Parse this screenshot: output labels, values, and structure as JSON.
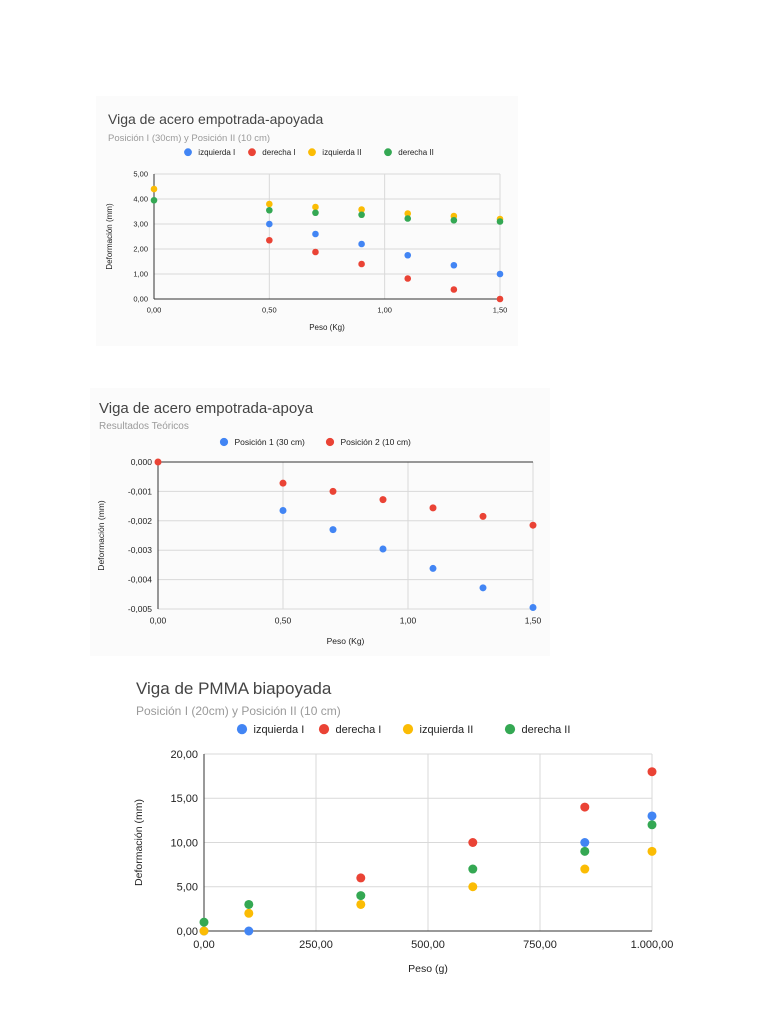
{
  "colors": {
    "blue": "#4285F4",
    "red": "#EA4335",
    "yellow": "#FBBC04",
    "green": "#34A853"
  },
  "chart_data": [
    {
      "type": "scatter",
      "title": "Viga de acero empotrada-apoyada",
      "subtitle": "Posición I (30cm) y Posición II (10 cm)",
      "xlabel": "Peso (Kg)",
      "ylabel": "Deformación (mm)",
      "xlim": [
        0,
        1.5
      ],
      "ylim": [
        0,
        5
      ],
      "xticks": [
        0,
        0.5,
        1.0,
        1.5
      ],
      "xtick_labels": [
        "0,00",
        "0,50",
        "1,00",
        "1,50"
      ],
      "yticks": [
        0,
        1,
        2,
        3,
        4,
        5
      ],
      "ytick_labels": [
        "0,00",
        "1,00",
        "2,00",
        "3,00",
        "4,00",
        "5,00"
      ],
      "grid": true,
      "legend": "top",
      "series": [
        {
          "name": "izquierda I",
          "color": "#4285F4",
          "x": [
            0.5,
            0.7,
            0.9,
            1.1,
            1.3,
            1.5
          ],
          "y": [
            3.0,
            2.6,
            2.2,
            1.75,
            1.35,
            1.0
          ]
        },
        {
          "name": "derecha I",
          "color": "#EA4335",
          "x": [
            0.5,
            0.7,
            0.9,
            1.1,
            1.3,
            1.5
          ],
          "y": [
            2.35,
            1.88,
            1.4,
            0.82,
            0.38,
            0.0
          ]
        },
        {
          "name": "izquierda II",
          "color": "#FBBC04",
          "x": [
            0.0,
            0.5,
            0.7,
            0.9,
            1.1,
            1.3,
            1.5
          ],
          "y": [
            4.4,
            3.8,
            3.68,
            3.58,
            3.42,
            3.32,
            3.2
          ]
        },
        {
          "name": "derecha II",
          "color": "#34A853",
          "x": [
            0.0,
            0.5,
            0.7,
            0.9,
            1.1,
            1.3,
            1.5
          ],
          "y": [
            3.95,
            3.55,
            3.45,
            3.37,
            3.22,
            3.15,
            3.1
          ]
        }
      ]
    },
    {
      "type": "scatter",
      "title": "Viga de acero empotrada-apoya",
      "subtitle": "Resultados Teóricos",
      "xlabel": "Peso (Kg)",
      "ylabel": "Deformación (mm)",
      "xlim": [
        0,
        1.5
      ],
      "ylim": [
        -0.005,
        0
      ],
      "xticks": [
        0,
        0.5,
        1.0,
        1.5
      ],
      "xtick_labels": [
        "0,00",
        "0,50",
        "1,00",
        "1,50"
      ],
      "yticks": [
        0,
        -0.001,
        -0.002,
        -0.003,
        -0.004,
        -0.005
      ],
      "ytick_labels": [
        "0,000",
        "-0,001",
        "-0,002",
        "-0,003",
        "-0,004",
        "-0,005"
      ],
      "grid": true,
      "legend": "top",
      "series": [
        {
          "name": "Posición 1 (30 cm)",
          "color": "#4285F4",
          "x": [
            0.5,
            0.7,
            0.9,
            1.1,
            1.3,
            1.5
          ],
          "y": [
            -0.00165,
            -0.0023,
            -0.00296,
            -0.00362,
            -0.00428,
            -0.00495
          ]
        },
        {
          "name": "Posición 2 (10 cm)",
          "color": "#EA4335",
          "x": [
            0.0,
            0.5,
            0.7,
            0.9,
            1.1,
            1.3,
            1.5
          ],
          "y": [
            0.0,
            -0.00072,
            -0.001,
            -0.00128,
            -0.00156,
            -0.00185,
            -0.00215
          ]
        }
      ]
    },
    {
      "type": "scatter",
      "title": "Viga de PMMA biapoyada",
      "subtitle": "Posición I (20cm) y Posición II (10 cm)",
      "xlabel": "Peso (g)",
      "ylabel": "Deformación (mm)",
      "xlim": [
        0,
        1000
      ],
      "ylim": [
        0,
        20
      ],
      "xticks": [
        0,
        250,
        500,
        750,
        1000
      ],
      "xtick_labels": [
        "0,00",
        "250,00",
        "500,00",
        "750,00",
        "1.000,00"
      ],
      "yticks": [
        0,
        5,
        10,
        15,
        20
      ],
      "ytick_labels": [
        "0,00",
        "5,00",
        "10,00",
        "15,00",
        "20,00"
      ],
      "grid": true,
      "legend": "top",
      "series": [
        {
          "name": "izquierda I",
          "color": "#4285F4",
          "x": [
            0,
            100,
            850,
            1000
          ],
          "y": [
            0,
            0,
            10,
            13
          ]
        },
        {
          "name": "derecha I",
          "color": "#EA4335",
          "x": [
            350,
            600,
            850,
            1000
          ],
          "y": [
            6,
            10,
            14,
            18
          ]
        },
        {
          "name": "izquierda II",
          "color": "#FBBC04",
          "x": [
            0,
            100,
            350,
            600,
            850,
            1000
          ],
          "y": [
            0,
            2,
            3,
            5,
            7,
            9
          ]
        },
        {
          "name": "derecha II",
          "color": "#34A853",
          "x": [
            0,
            100,
            350,
            600,
            850,
            1000
          ],
          "y": [
            1,
            3,
            4,
            7,
            9,
            12
          ]
        }
      ]
    }
  ]
}
